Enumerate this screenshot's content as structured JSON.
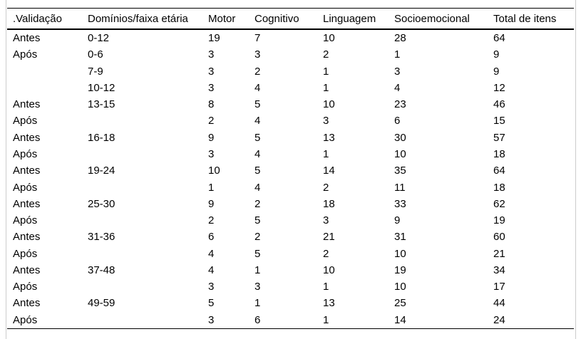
{
  "table": {
    "columns": [
      ".Validação",
      "Domínios/faixa etária",
      "Motor",
      "Cognitivo",
      "Linguagem",
      "Socioemocional",
      "Total de itens"
    ],
    "rows": [
      [
        "Antes",
        "0-12",
        "19",
        "7",
        "10",
        "28",
        "64"
      ],
      [
        "Após",
        "0-6",
        "3",
        "3",
        "2",
        "1",
        "9"
      ],
      [
        "",
        "7-9",
        "3",
        "2",
        "1",
        "3",
        "9"
      ],
      [
        "",
        "10-12",
        "3",
        "4",
        "1",
        "4",
        "12"
      ],
      [
        "Antes",
        "13-15",
        "8",
        "5",
        "10",
        "23",
        "46"
      ],
      [
        "Após",
        "",
        "2",
        "4",
        "3",
        "6",
        "15"
      ],
      [
        "Antes",
        "16-18",
        "9",
        "5",
        "13",
        "30",
        "57"
      ],
      [
        "Após",
        "",
        "3",
        "4",
        "1",
        "10",
        "18"
      ],
      [
        "Antes",
        "19-24",
        "10",
        "5",
        "14",
        "35",
        "64"
      ],
      [
        "Após",
        "",
        "1",
        "4",
        "2",
        "11",
        "18"
      ],
      [
        "Antes",
        "25-30",
        "9",
        "2",
        "18",
        "33",
        "62"
      ],
      [
        "Após",
        "",
        "2",
        "5",
        "3",
        "9",
        "19"
      ],
      [
        "Antes",
        "31-36",
        "6",
        "2",
        "21",
        "31",
        "60"
      ],
      [
        "Após",
        "",
        "4",
        "5",
        "2",
        "10",
        "21"
      ],
      [
        "Antes",
        "37-48",
        "4",
        "1",
        "10",
        "19",
        "34"
      ],
      [
        "Após",
        "",
        "3",
        "3",
        "1",
        "10",
        "17"
      ],
      [
        "Antes",
        "49-59",
        "5",
        "1",
        "13",
        "25",
        "44"
      ],
      [
        "Após",
        "",
        "3",
        "6",
        "1",
        "14",
        "24"
      ]
    ]
  },
  "colors": {
    "text": "#000000",
    "rule": "#000000",
    "page_edge": "#cccccc",
    "background": "#ffffff"
  }
}
